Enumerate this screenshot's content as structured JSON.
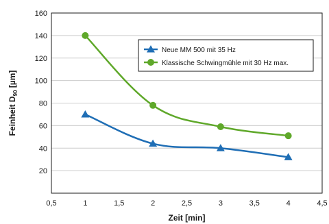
{
  "chart_data": {
    "type": "line",
    "xlabel": "Zeit [min]",
    "ylabel": {
      "main": "Feinheit D",
      "subscript": "90",
      "unit": " [µm]"
    },
    "xlim": [
      0.5,
      4.5
    ],
    "ylim": [
      0,
      160
    ],
    "xticks": [
      0.5,
      1,
      1.5,
      2,
      2.5,
      3,
      3.5,
      4,
      4.5
    ],
    "xtick_labels": [
      "0,5",
      "1",
      "1,5",
      "2",
      "2,5",
      "3",
      "3,5",
      "4",
      "4,5"
    ],
    "yticks": [
      20,
      40,
      60,
      80,
      100,
      120,
      140,
      160
    ],
    "ytick_labels": [
      "20",
      "40",
      "60",
      "80",
      "100",
      "120",
      "140",
      "160"
    ],
    "grid": true,
    "legend_position": "top-right",
    "series": [
      {
        "name": "Neue MM 500 mit 35 Hz",
        "color": "#1f6eb5",
        "marker": "triangle",
        "x": [
          1,
          2,
          3,
          4
        ],
        "y": [
          70,
          44,
          40,
          32
        ]
      },
      {
        "name": "Klassische Schwingmühle mit 30 Hz max.",
        "color": "#5fa82a",
        "marker": "circle",
        "x": [
          1,
          2,
          3,
          4
        ],
        "y": [
          140,
          78,
          59,
          51
        ]
      }
    ]
  }
}
